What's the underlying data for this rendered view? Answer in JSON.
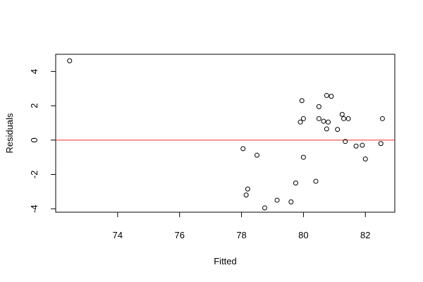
{
  "chart_data": {
    "type": "scatter",
    "title": "",
    "xlabel": "Fitted",
    "ylabel": "Residuals",
    "xlim": [
      72.0,
      82.95
    ],
    "ylim": [
      -4.2,
      5.0
    ],
    "xticks": [
      74,
      76,
      78,
      80,
      82
    ],
    "yticks": [
      -4,
      -2,
      0,
      2,
      4
    ],
    "grid": false,
    "legend": "none",
    "reference_line": {
      "y": 0,
      "color": "#e8312a"
    },
    "point_color": "#000000",
    "points": [
      {
        "x": 72.45,
        "y": 4.62
      },
      {
        "x": 78.05,
        "y": -0.5
      },
      {
        "x": 78.15,
        "y": -3.2
      },
      {
        "x": 78.2,
        "y": -2.85
      },
      {
        "x": 78.5,
        "y": -0.88
      },
      {
        "x": 78.75,
        "y": -3.95
      },
      {
        "x": 79.15,
        "y": -3.5
      },
      {
        "x": 79.6,
        "y": -3.6
      },
      {
        "x": 79.75,
        "y": -2.5
      },
      {
        "x": 79.9,
        "y": 1.05
      },
      {
        "x": 79.95,
        "y": 2.3
      },
      {
        "x": 80.0,
        "y": 1.25
      },
      {
        "x": 80.0,
        "y": -1.0
      },
      {
        "x": 80.4,
        "y": -2.4
      },
      {
        "x": 80.5,
        "y": 1.95
      },
      {
        "x": 80.5,
        "y": 1.25
      },
      {
        "x": 80.65,
        "y": 1.1
      },
      {
        "x": 80.75,
        "y": 2.6
      },
      {
        "x": 80.75,
        "y": 0.65
      },
      {
        "x": 80.8,
        "y": 1.05
      },
      {
        "x": 80.9,
        "y": 2.55
      },
      {
        "x": 81.1,
        "y": 0.62
      },
      {
        "x": 81.25,
        "y": 1.5
      },
      {
        "x": 81.3,
        "y": 1.25
      },
      {
        "x": 81.35,
        "y": -0.08
      },
      {
        "x": 81.45,
        "y": 1.25
      },
      {
        "x": 81.7,
        "y": -0.35
      },
      {
        "x": 81.9,
        "y": -0.3
      },
      {
        "x": 82.0,
        "y": -1.1
      },
      {
        "x": 82.5,
        "y": -0.2
      },
      {
        "x": 82.55,
        "y": 1.25
      }
    ]
  }
}
